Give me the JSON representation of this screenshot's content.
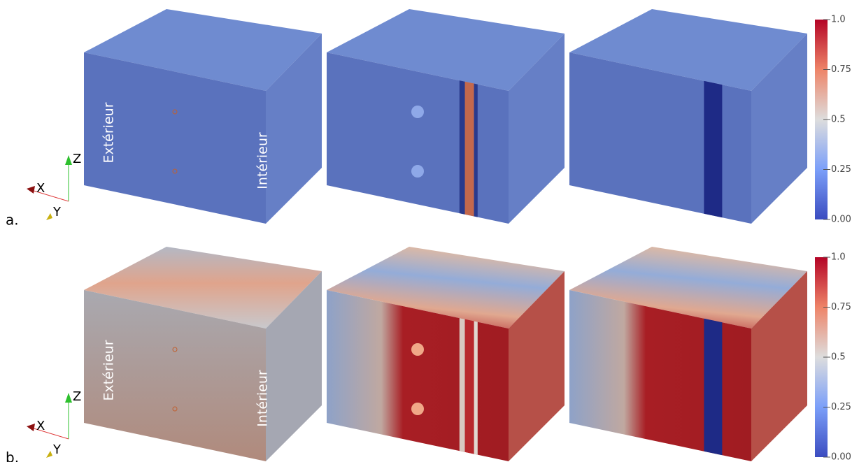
{
  "rows": [
    {
      "label": "a.",
      "exterior": "Extérieur",
      "interior": "Intérieur",
      "axes": {
        "x": "X",
        "y": "Y",
        "z": "Z"
      },
      "colorbar": {
        "ticks": [
          {
            "value": 0,
            "label": "0.00"
          },
          0.25,
          0.5,
          0.75,
          {
            "value": 1,
            "label": "1.0"
          }
        ]
      }
    },
    {
      "label": "b.",
      "exterior": "Extérieur",
      "interior": "Intérieur",
      "axes": {
        "x": "X",
        "y": "Y",
        "z": "Z"
      },
      "colorbar": {
        "ticks": [
          {
            "value": 0,
            "label": "0.00"
          },
          0.25,
          0.5,
          0.75,
          {
            "value": 1,
            "label": "1.0"
          }
        ]
      }
    }
  ]
}
